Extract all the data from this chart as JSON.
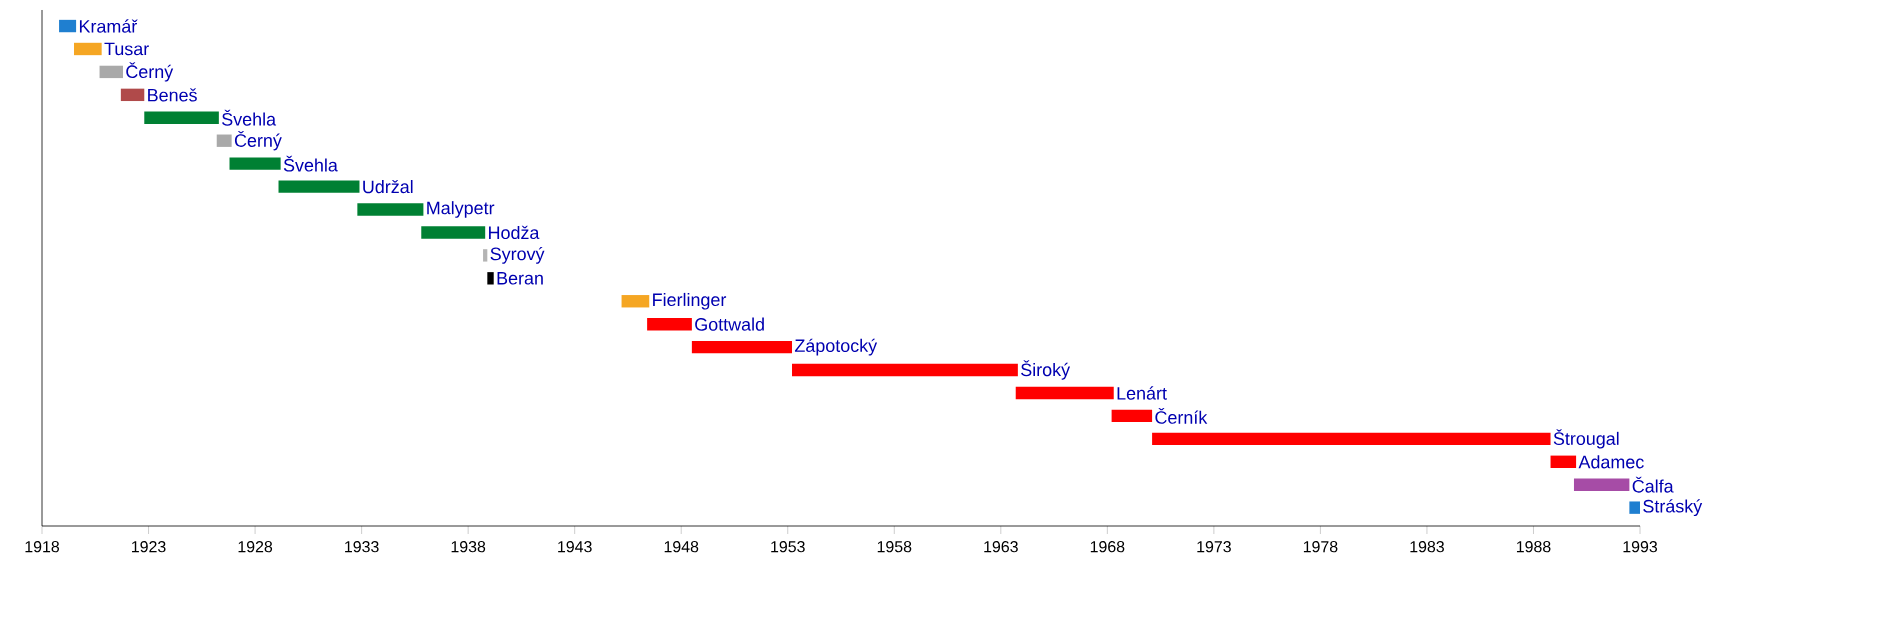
{
  "chart_data": {
    "type": "bar",
    "orientation": "horizontal",
    "categories": [
      "Kramář",
      "Tusar",
      "Černý",
      "Beneš",
      "Švehla",
      "Černý",
      "Švehla",
      "Udržal",
      "Malypetr",
      "Hodža",
      "Syrový",
      "Beran",
      "Fierlinger",
      "Gottwald",
      "Zápotocký",
      "Široký",
      "Lenárt",
      "Černík",
      "Štrougal",
      "Adamec",
      "Čalfa",
      "Stráský"
    ],
    "base": [
      1918.8,
      1919.5,
      1920.7,
      1921.7,
      1922.8,
      1926.2,
      1926.8,
      1929.1,
      1932.8,
      1935.8,
      1938.7,
      1938.9,
      1945.2,
      1946.4,
      1948.5,
      1953.2,
      1963.7,
      1968.2,
      1970.1,
      1988.8,
      1989.9,
      1992.5
    ],
    "values": [
      0.8,
      1.3,
      1.1,
      1.1,
      3.5,
      0.7,
      2.4,
      3.8,
      3.1,
      3.0,
      0.2,
      0.3,
      1.3,
      2.1,
      4.7,
      10.6,
      4.6,
      1.9,
      18.7,
      1.2,
      2.6,
      0.5
    ],
    "colors": [
      "#1f7fd0",
      "#f5a623",
      "#a9a9a9",
      "#b04a4a",
      "#008033",
      "#a9a9a9",
      "#008033",
      "#008033",
      "#008033",
      "#008033",
      "#b4b4b4",
      "#000000",
      "#f5a623",
      "#ff0000",
      "#ff0000",
      "#ff0000",
      "#ff0000",
      "#ff0000",
      "#ff0000",
      "#ff0000",
      "#a64ca6",
      "#1f7fd0"
    ],
    "xlim": [
      1918,
      1993
    ],
    "xticks": [
      1918,
      1923,
      1928,
      1933,
      1938,
      1943,
      1948,
      1953,
      1958,
      1963,
      1968,
      1973,
      1978,
      1983,
      1988,
      1993
    ]
  }
}
